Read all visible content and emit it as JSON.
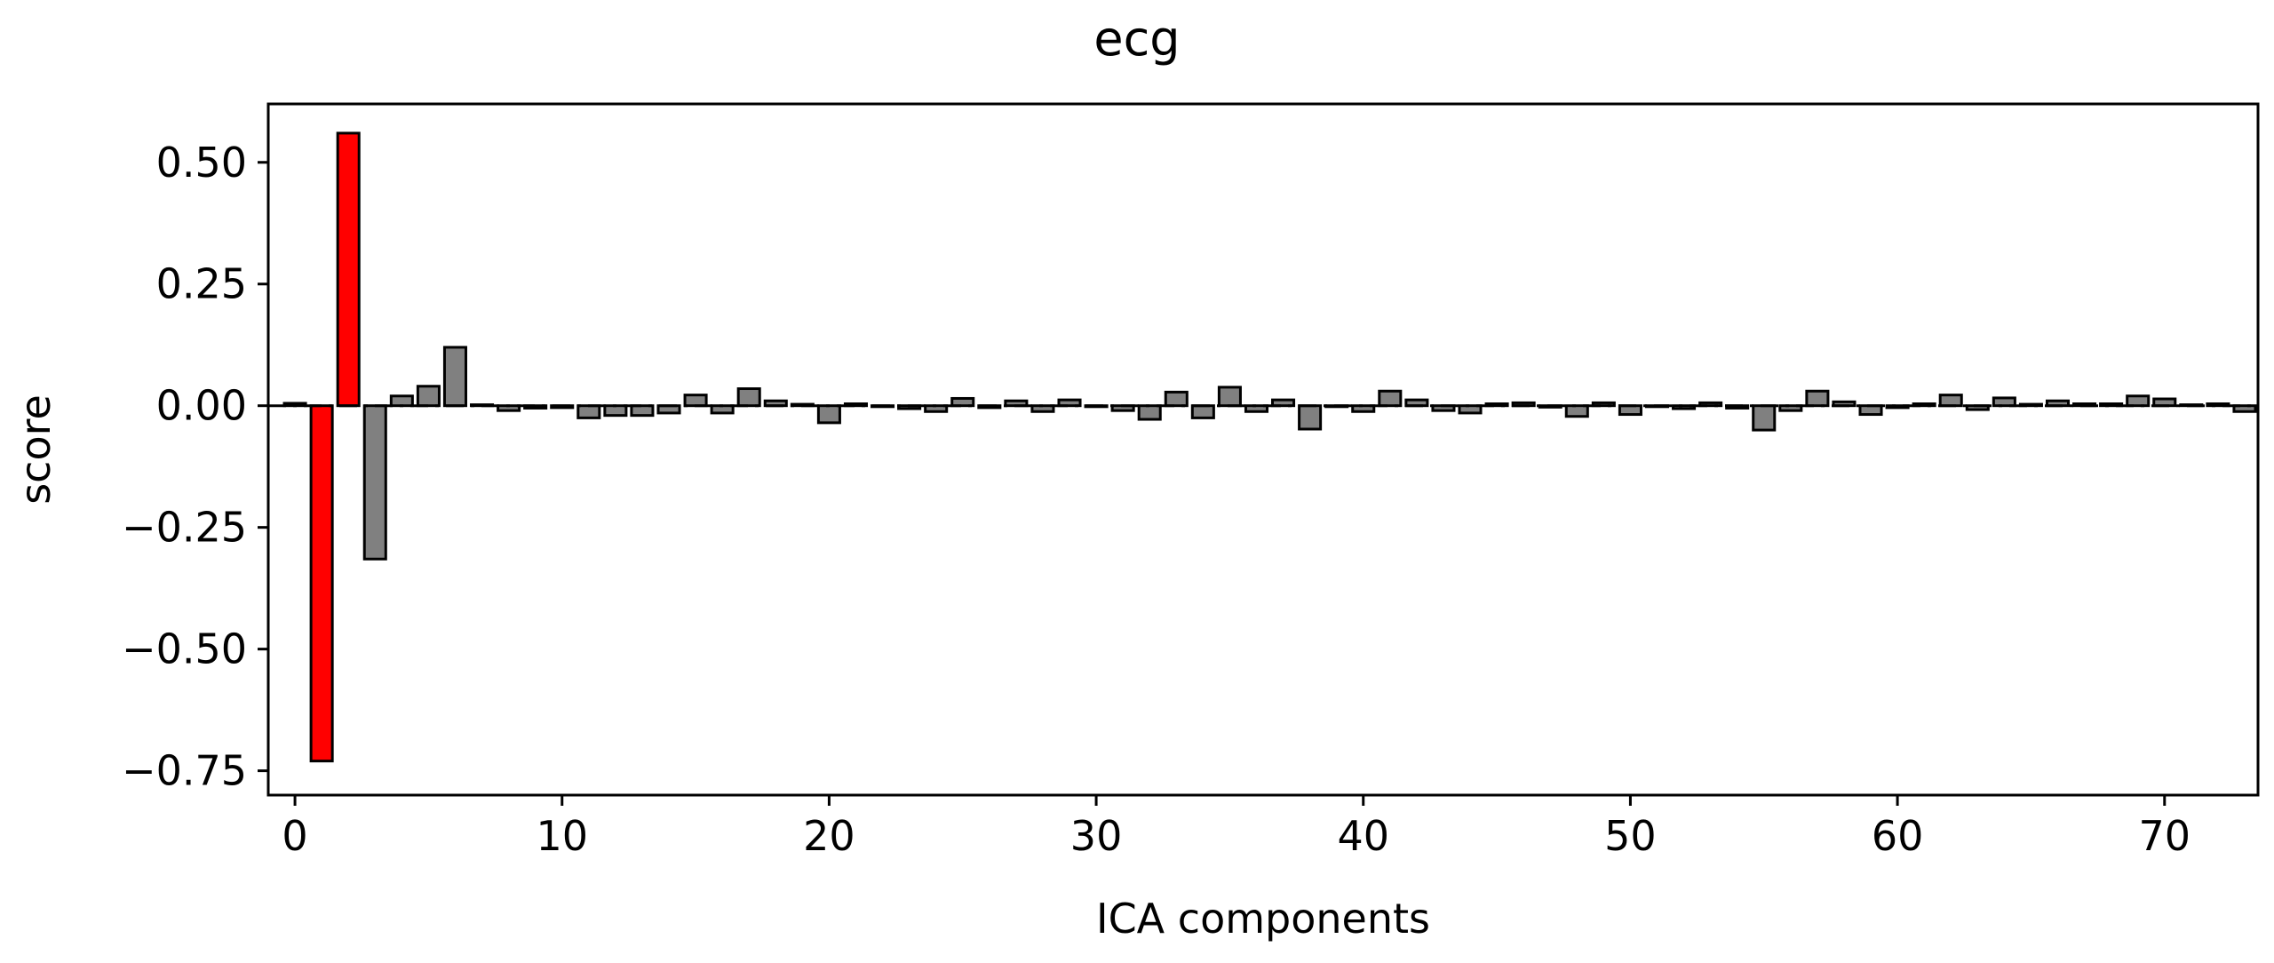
{
  "chart_data": {
    "type": "bar",
    "title": "ecg",
    "xlabel": "ICA components",
    "ylabel": "score",
    "xlim": [
      -1,
      73.5
    ],
    "ylim": [
      -0.8,
      0.62
    ],
    "xticks": [
      0,
      10,
      20,
      30,
      40,
      50,
      60,
      70
    ],
    "xtick_labels": [
      "0",
      "10",
      "20",
      "30",
      "40",
      "50",
      "60",
      "70"
    ],
    "yticks": [
      -0.75,
      -0.5,
      -0.25,
      0.0,
      0.25,
      0.5
    ],
    "ytick_labels": [
      "−0.75",
      "−0.50",
      "−0.25",
      "0.00",
      "0.25",
      "0.50"
    ],
    "grid": false,
    "legend": "none",
    "colors": {
      "excluded": "#ff0000",
      "other": "#808080",
      "edge": "#000000"
    },
    "excluded_components": [
      1,
      2
    ],
    "x": [
      0,
      1,
      2,
      3,
      4,
      5,
      6,
      7,
      8,
      9,
      10,
      11,
      12,
      13,
      14,
      15,
      16,
      17,
      18,
      19,
      20,
      21,
      22,
      23,
      24,
      25,
      26,
      27,
      28,
      29,
      30,
      31,
      32,
      33,
      34,
      35,
      36,
      37,
      38,
      39,
      40,
      41,
      42,
      43,
      44,
      45,
      46,
      47,
      48,
      49,
      50,
      51,
      52,
      53,
      54,
      55,
      56,
      57,
      58,
      59,
      60,
      61,
      62,
      63,
      64,
      65,
      66,
      67,
      68,
      69,
      70,
      71,
      72,
      73
    ],
    "values": [
      0.005,
      -0.73,
      0.56,
      -0.315,
      0.02,
      0.04,
      0.12,
      0.002,
      -0.01,
      -0.005,
      -0.004,
      -0.025,
      -0.02,
      -0.02,
      -0.015,
      0.022,
      -0.015,
      0.035,
      0.01,
      0.003,
      -0.035,
      0.004,
      -0.002,
      -0.006,
      -0.012,
      0.015,
      -0.004,
      0.01,
      -0.012,
      0.012,
      -0.002,
      -0.01,
      -0.028,
      0.028,
      -0.025,
      0.038,
      -0.012,
      0.012,
      -0.048,
      -0.002,
      -0.012,
      0.03,
      0.012,
      -0.01,
      -0.015,
      0.004,
      0.006,
      -0.003,
      -0.022,
      0.006,
      -0.018,
      -0.002,
      -0.006,
      0.006,
      -0.005,
      -0.05,
      -0.01,
      0.03,
      0.008,
      -0.018,
      -0.004,
      0.004,
      0.022,
      -0.008,
      0.016,
      0.003,
      0.01,
      0.004,
      0.004,
      0.02,
      0.014,
      0.002,
      0.004,
      -0.012
    ]
  }
}
